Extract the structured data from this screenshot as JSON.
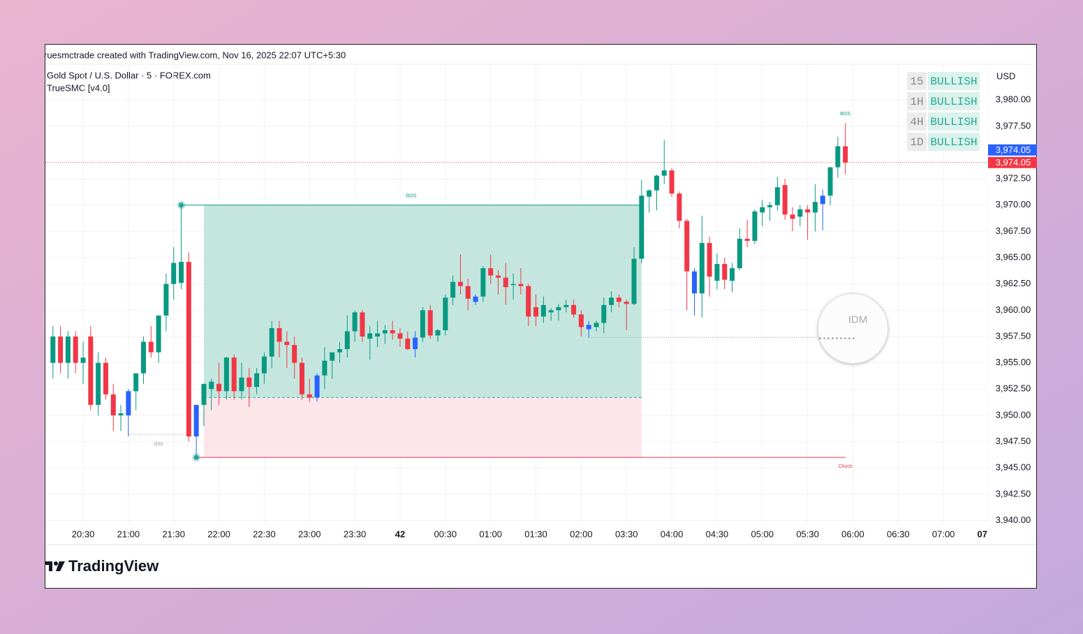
{
  "header": {
    "attribution": "ruesmctrade created with TradingView.com, Nov 16, 2025 22:07 UTC+5:30",
    "symbol": "Gold Spot / U.S. Dollar · 5 · FOREX.com",
    "indicator": "TrueSMC [v4.0]",
    "brand": "TradingView"
  },
  "chart_data": {
    "type": "candlestick",
    "currency": "USD",
    "grid": true,
    "up_color": "#089981",
    "down_color": "#f23645",
    "highlight": {
      "color": "#2962ff",
      "x": [
        6,
        15,
        31,
        44,
        52,
        67,
        81,
        98
      ]
    },
    "xlim": [
      -5,
      120
    ],
    "xticks": [
      {
        "value": 0,
        "label": "20:30"
      },
      {
        "value": 6,
        "label": "21:00"
      },
      {
        "value": 12,
        "label": "21:30"
      },
      {
        "value": 18,
        "label": "22:00"
      },
      {
        "value": 24,
        "label": "22:30"
      },
      {
        "value": 30,
        "label": "23:00"
      },
      {
        "value": 36,
        "label": "23:30"
      },
      42,
      {
        "value": 48,
        "label": "00:30"
      },
      {
        "value": 54,
        "label": "01:00"
      },
      {
        "value": 60,
        "label": "01:30"
      },
      {
        "value": 66,
        "label": "02:00"
      },
      {
        "value": 72,
        "label": "03:30"
      },
      {
        "value": 78,
        "label": "04:00"
      },
      {
        "value": 84,
        "label": "04:30"
      },
      {
        "value": 90,
        "label": "05:00"
      },
      {
        "value": 96,
        "label": "05:30"
      },
      {
        "value": 102,
        "label": "06:00"
      },
      {
        "value": 108,
        "label": "06:30"
      },
      {
        "value": 114,
        "label": "07:00"
      },
      {
        "value": 120,
        "label": "07"
      }
    ],
    "ylim": [
      3939.7,
      3983.2
    ],
    "yticks": [
      {
        "value": 3940,
        "label": "3,940.00"
      },
      {
        "value": 3942.5,
        "label": "3,942.50"
      },
      {
        "value": 3945,
        "label": "3,945.00"
      },
      {
        "value": 3947.5,
        "label": "3,947.50"
      },
      {
        "value": 3950,
        "label": "3,950.00"
      },
      {
        "value": 3952.5,
        "label": "3,952.50"
      },
      {
        "value": 3955,
        "label": "3,955.00"
      },
      {
        "value": 3957.5,
        "label": "3,957.50"
      },
      {
        "value": 3960,
        "label": "3,960.00"
      },
      {
        "value": 3962.5,
        "label": "3,962.50"
      },
      {
        "value": 3965,
        "label": "3,965.00"
      },
      {
        "value": 3967.5,
        "label": "3,967.50"
      },
      {
        "value": 3970,
        "label": "3,970.00"
      },
      {
        "value": 3972.5,
        "label": "3,972.50"
      },
      {
        "value": 3977.5,
        "label": "3,977.50"
      },
      {
        "value": 3980,
        "label": "3,980.00"
      }
    ],
    "candles": {
      "x": [
        -4,
        -3,
        -2,
        -1,
        0,
        1,
        2,
        3,
        4,
        5,
        6,
        7,
        8,
        9,
        10,
        11,
        12,
        13,
        14,
        15,
        16,
        17,
        18,
        19,
        20,
        21,
        22,
        23,
        24,
        25,
        26,
        27,
        28,
        29,
        30,
        31,
        32,
        33,
        34,
        35,
        36,
        37,
        38,
        39,
        40,
        41,
        42,
        43,
        44,
        45,
        46,
        47,
        48,
        49,
        50,
        51,
        52,
        53,
        54,
        55,
        56,
        57,
        58,
        59,
        60,
        61,
        62,
        63,
        64,
        65,
        66,
        67,
        68,
        69,
        70,
        71,
        72,
        73,
        74,
        75,
        76,
        77,
        78,
        79,
        80,
        81,
        82,
        83,
        84,
        85,
        86,
        87,
        88,
        89,
        90,
        91,
        92,
        93,
        94,
        95,
        96,
        97,
        98,
        99,
        100,
        101
      ],
      "open": [
        3955,
        3957.5,
        3955,
        3957.5,
        3955,
        3957.5,
        3951,
        3955,
        3952,
        3950,
        3950,
        3952.3,
        3954,
        3957,
        3956,
        3959.5,
        3962.5,
        3962.6,
        3964.6,
        3948,
        3951,
        3952.5,
        3953,
        3952.3,
        3955.5,
        3952.3,
        3953.6,
        3952.7,
        3954,
        3955.6,
        3958.3,
        3957,
        3956.7,
        3955,
        3952,
        3951.7,
        3953.8,
        3955.2,
        3956,
        3956.3,
        3958,
        3959.8,
        3957.3,
        3957.5,
        3957.8,
        3958.1,
        3957.8,
        3957.3,
        3956.3,
        3957.4,
        3960,
        3957.6,
        3958.1,
        3961.2,
        3962.7,
        3962.3,
        3960.8,
        3961.3,
        3964,
        3963.3,
        3963.1,
        3962.4,
        3962.5,
        3962.3,
        3960.3,
        3959.4,
        3959.8,
        3960,
        3960.3,
        3960.5,
        3959.6,
        3958.2,
        3958.4,
        3958.8,
        3960.5,
        3961.2,
        3960.8,
        3960.6,
        3964.9,
        3970.8,
        3971.4,
        3972.8,
        3973.3,
        3971.1,
        3968.5,
        3963.7,
        3961.6,
        3966.4,
        3962.8,
        3964.4,
        3962.8,
        3964,
        3966.8,
        3966.6,
        3969.3,
        3969.8,
        3970,
        3971.9,
        3969.1,
        3968.9,
        3969.6,
        3969.3,
        3970.1,
        3970.9,
        3973.6,
        3975.6
      ],
      "high": [
        3958.5,
        3958.5,
        3958,
        3958,
        3957,
        3958.5,
        3956,
        3955.5,
        3953,
        3951,
        3952.5,
        3954,
        3957.5,
        3958.5,
        3959.5,
        3963.5,
        3966,
        3970,
        3965.5,
        3951,
        3953,
        3953.5,
        3955,
        3955.6,
        3955.8,
        3955,
        3954.5,
        3954.5,
        3956,
        3959,
        3959,
        3958,
        3957.5,
        3955.5,
        3953.5,
        3954,
        3956.5,
        3956,
        3957,
        3959.5,
        3960,
        3960,
        3958.5,
        3959,
        3958.6,
        3959,
        3958.3,
        3958,
        3958,
        3960.3,
        3960.5,
        3958.2,
        3961.5,
        3963.3,
        3965.3,
        3963,
        3961.5,
        3964.2,
        3965.3,
        3963.8,
        3964.5,
        3963.5,
        3964,
        3962.5,
        3961.5,
        3961.3,
        3960.2,
        3960.6,
        3961,
        3961,
        3960,
        3959,
        3959,
        3961.2,
        3961.8,
        3961.5,
        3961,
        3966,
        3972.4,
        3971.5,
        3972.9,
        3976.2,
        3973.5,
        3971.3,
        3968.7,
        3964,
        3969,
        3967,
        3965.4,
        3965,
        3964.5,
        3967.8,
        3968.6,
        3969.6,
        3970.5,
        3970.3,
        3972.7,
        3972.5,
        3969.8,
        3970,
        3970,
        3972,
        3971.5,
        3973,
        3976.5,
        3977.8
      ],
      "low": [
        3953.5,
        3954,
        3953.5,
        3954,
        3953,
        3950.5,
        3950,
        3951.5,
        3948.5,
        3948.5,
        3948,
        3950.5,
        3953,
        3955.5,
        3955,
        3958,
        3961,
        3962,
        3947.5,
        3946,
        3949,
        3950.5,
        3951,
        3951.5,
        3951.5,
        3951.5,
        3950.8,
        3952,
        3953,
        3954.5,
        3955.5,
        3954.5,
        3953.5,
        3951.5,
        3951.3,
        3951.3,
        3952.5,
        3953.5,
        3955,
        3955.5,
        3957,
        3957,
        3955.3,
        3956.5,
        3956.8,
        3957.2,
        3956.5,
        3956.2,
        3955.5,
        3957,
        3957.3,
        3957,
        3957.6,
        3960.5,
        3961.5,
        3960,
        3960.5,
        3960.8,
        3962.5,
        3961.5,
        3960.5,
        3961,
        3961.5,
        3958.5,
        3958.5,
        3958.8,
        3959,
        3959,
        3959.8,
        3959.3,
        3957.5,
        3957.4,
        3958,
        3957.8,
        3959.8,
        3960.3,
        3958.1,
        3960.5,
        3964.5,
        3969.3,
        3969.5,
        3972,
        3970.8,
        3967.8,
        3960,
        3959.5,
        3959.3,
        3961.3,
        3962,
        3962,
        3961.7,
        3963.8,
        3966,
        3966.3,
        3968,
        3968.5,
        3969.5,
        3968.6,
        3967.5,
        3968,
        3966.7,
        3967.5,
        3967.6,
        3970,
        3972.6,
        3972.9
      ],
      "close": [
        3957.5,
        3955,
        3957.5,
        3955,
        3955.5,
        3951,
        3955,
        3952,
        3950,
        3950.2,
        3952.3,
        3954,
        3957,
        3956,
        3959.5,
        3962.5,
        3964.5,
        3964.6,
        3948,
        3951,
        3953,
        3953.2,
        3952.3,
        3955.5,
        3952.3,
        3953.6,
        3952.7,
        3954,
        3955.6,
        3958.3,
        3957,
        3956.7,
        3955,
        3952,
        3951.7,
        3953.8,
        3955.2,
        3956,
        3956.3,
        3958,
        3959.8,
        3957.5,
        3957.8,
        3957.8,
        3958.1,
        3957.8,
        3957.3,
        3956.3,
        3957.4,
        3960,
        3957.6,
        3958.1,
        3961.2,
        3962.7,
        3962.3,
        3961.1,
        3961.3,
        3964,
        3963.3,
        3963.1,
        3962.2,
        3962.5,
        3962.3,
        3959.4,
        3959.4,
        3960.5,
        3960,
        3960.3,
        3960.5,
        3959.6,
        3958.4,
        3958.6,
        3958.8,
        3960.5,
        3961.2,
        3960.8,
        3960.6,
        3964.9,
        3970.9,
        3971.4,
        3972.8,
        3973.3,
        3971.1,
        3968.5,
        3963.7,
        3961.6,
        3966.4,
        3963.2,
        3964.4,
        3962.9,
        3964,
        3966.8,
        3966.6,
        3969.4,
        3969.8,
        3970,
        3971.7,
        3969.1,
        3968.7,
        3969.6,
        3969.3,
        3970.3,
        3970.9,
        3973.6,
        3975.6,
        3974.05
      ]
    },
    "last_price": {
      "value": 3974.05,
      "label": "3,974.05"
    },
    "zones": [
      {
        "top": 3970,
        "bottom": 3951.7,
        "x": [
          16,
          74
        ],
        "color": "#c4e6de"
      },
      {
        "top": 3951.7,
        "bottom": 3946,
        "x": [
          16,
          74
        ],
        "color": "#fde6ea"
      }
    ],
    "levels": [
      {
        "label": "BOS",
        "value": 3970,
        "x": [
          13,
          74
        ],
        "color": "#089981",
        "style": "solid",
        "position": "above"
      },
      {
        "value": 3951.7,
        "x": [
          16,
          74
        ],
        "color": "#26a69a",
        "style": "dashed"
      },
      {
        "label": "Choch",
        "value": 3946,
        "x": [
          15,
          101
        ],
        "color": "#f23645",
        "style": "solid",
        "position": "end-below"
      },
      {
        "label": "IDM",
        "value": 3948.2,
        "x": [
          6,
          14
        ],
        "color": "#9e9e9e",
        "style": "dotted",
        "position": "below"
      },
      {
        "label": "IDM",
        "value": 3957.4,
        "x": [
          67,
          102
        ],
        "color": "#9e9e9e",
        "style": "dotted",
        "position": "magnified"
      },
      {
        "label": "BOS",
        "value": 3977.8,
        "x": [
          101,
          101
        ],
        "color": "#089981",
        "style": "solid",
        "position": "above"
      }
    ],
    "pivots": [
      {
        "x": 13,
        "value": 3970,
        "color": "#26a69a"
      },
      {
        "x": 15,
        "value": 3946,
        "color": "#26a69a"
      }
    ],
    "bias": [
      {
        "timeframe": "15",
        "trend": "BULLISH"
      },
      {
        "timeframe": "1H",
        "trend": "BULLISH"
      },
      {
        "timeframe": "4H",
        "trend": "BULLISH"
      },
      {
        "timeframe": "1D",
        "trend": "BULLISH"
      }
    ]
  }
}
